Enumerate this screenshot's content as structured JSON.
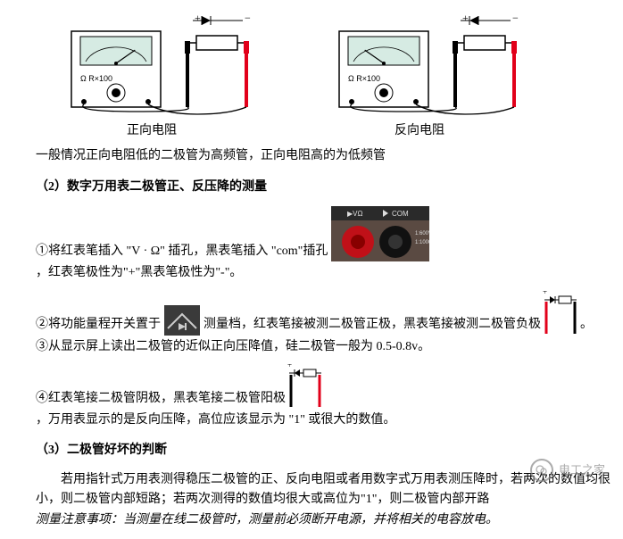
{
  "fig1": {
    "caption": "正向电阻",
    "meter_label": "Ω   R×100",
    "meter_bg": "#ffffff",
    "meter_border": "#000000",
    "screen_bg": "#d6ebe3",
    "probe_red": "#e2001a",
    "probe_black": "#000000",
    "wire": "#000000",
    "diode_dir": "right",
    "needle_angle": 55
  },
  "fig2": {
    "caption": "反向电阻",
    "meter_label": "Ω   R×100",
    "meter_bg": "#ffffff",
    "meter_border": "#000000",
    "screen_bg": "#d6ebe3",
    "probe_red": "#e2001a",
    "probe_black": "#000000",
    "wire": "#000000",
    "diode_dir": "left",
    "needle_angle": -55
  },
  "intro": "一般情况正向电阻低的二极管为高频管，正向电阻高的为低频管",
  "section2_title": "（2）数字万用表二极管正、反压降的测量",
  "step1_a": "①将红表笔插入 \"V · Ω\" 插孔，黑表笔插入 \"com\"插孔",
  "step1_b": "，红表笔极性为\"+\"黑表笔极性为\"-\"。",
  "step2": "②将功能量程开关置于",
  "step2_b": "测量档，红表笔接被测二极管正极，黑表笔接被测二极管负极",
  "step2_c": "。",
  "step3": "③从显示屏上读出二极管的近似正向压降值，硅二极管一般为 0.5-0.8v。",
  "step4_a": "④红表笔接二极管阴极，黑表笔接二极管阳极",
  "step4_b": "，万用表显示的是反向压降，高位应该显示为 \"1\" 或很大的数值。",
  "section3_title": "（3）二极管好坏的判断",
  "p3_1": "若用指针式万用表测得稳压二极管的正、反向电阻或者用数字式万用表测压降时，若两次的数值均很小，则二极管内部短路；若两次测得的数值均很大或高位为\"1\"，则二极管内部开路",
  "note": "测量注意事项：当测量在线二极管时，测量前必须断开电源，并将相关的电容放电。",
  "photo1": {
    "bg": "#5a4a42",
    "top_bg": "#2a2a2a",
    "red": "#c01018",
    "black": "#111111",
    "labels": [
      "▶VΩ",
      "COM"
    ],
    "side_text": [
      "1:600V",
      "1:1000V"
    ]
  },
  "small_diagram": {
    "probe_red": "#e2001a",
    "probe_black": "#000000",
    "plus": "+",
    "wire": "#000000"
  },
  "dial_photo": {
    "bg": "#3a3a3a",
    "mark": "#cccccc"
  },
  "watermark": {
    "text": "电工之家",
    "icon_color": "#888888"
  }
}
